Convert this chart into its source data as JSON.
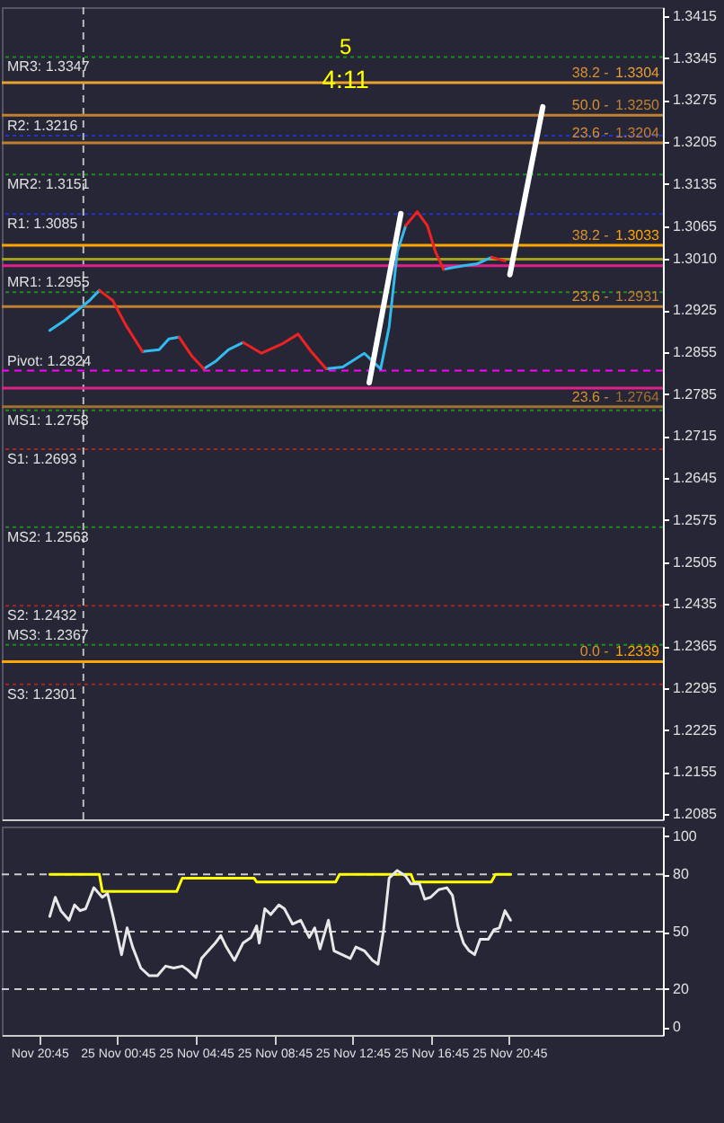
{
  "chart_data": [
    {
      "type": "line",
      "xlim": [
        "--11-24T18:50",
        "--11-26T04:36"
      ],
      "ylim": [
        1.2076,
        1.343
      ],
      "tick_labels": "y",
      "yticks": [
        1.3415,
        1.3345,
        1.3275,
        1.3205,
        1.3135,
        1.3065,
        {
          "value": 1.301,
          "label": "1.3010"
        },
        1.2925,
        1.2855,
        1.2785,
        1.2715,
        1.2645,
        1.2575,
        1.2505,
        1.2435,
        1.2365,
        1.2295,
        1.2225,
        1.2155,
        1.2085
      ],
      "x": [
        "--11-24T21:17",
        "--11-24T21:58",
        "--11-24T22:38",
        "--11-24T23:19",
        "--11-24T23:49",
        "--11-25T00:30",
        "--11-25T01:10",
        "--11-25T02:01",
        "--11-25T02:52",
        "--11-25T03:22",
        "--11-25T03:53",
        "--11-25T04:33",
        "--11-25T05:09",
        "--11-25T05:44",
        "--11-25T06:25",
        "--11-25T07:10",
        "--11-25T08:06",
        "--11-25T09:07",
        "--11-25T09:58",
        "--11-25T10:38",
        "--11-25T11:24",
        "--11-25T12:15",
        "--11-25T13:21",
        "--11-25T14:11",
        "--11-25T14:37",
        "--11-25T15:02",
        "--11-25T15:28",
        "--11-25T16:03",
        "--11-25T16:34",
        "--11-25T16:59",
        "--11-25T17:24",
        "--11-25T18:25",
        "--11-25T19:05",
        "--11-25T19:51",
        "--11-25T20:32"
      ],
      "series": [
        {
          "color": "#33bbee",
          "values": [
            1.2891,
            1.2906,
            1.2923,
            1.2941,
            1.2958,
            null,
            null,
            1.2856,
            1.2859,
            1.2877,
            1.288,
            null,
            1.2827,
            1.2839,
            1.2859,
            1.2871,
            null,
            null,
            null,
            null,
            1.2827,
            1.283,
            1.2853,
            1.2827,
            1.2897,
            1.3022,
            1.3066,
            null,
            null,
            null,
            1.2993,
            1.2999,
            1.3002,
            1.3013,
            null
          ]
        },
        {
          "color": "#ee2222",
          "values": [
            null,
            null,
            null,
            null,
            1.2958,
            1.2941,
            1.29,
            1.2856,
            null,
            null,
            1.288,
            1.2848,
            1.2827,
            null,
            null,
            1.2871,
            1.2853,
            1.2868,
            1.2885,
            1.2856,
            1.2827,
            null,
            null,
            null,
            null,
            null,
            1.3066,
            1.3089,
            1.3066,
            1.3022,
            1.2993,
            null,
            null,
            1.3013,
            1.3007
          ]
        },
        {
          "color": "#ffffff",
          "x": [
            "--11-25T13:36",
            "--11-25T15:13"
          ],
          "values": [
            1.2804,
            1.3086
          ]
        },
        {
          "color": "#ffffff",
          "x": [
            "--11-25T20:47",
            "--11-25T22:28"
          ],
          "values": [
            1.2984,
            1.3264
          ]
        }
      ],
      "ref_lines": [
        {
          "axis": "x",
          "value": "--11-24T23:00",
          "color": "#bbbbbb",
          "line_style": "dashed"
        },
        {
          "axis": "y",
          "value": 1.3347,
          "label": "MR3: 1.3347",
          "color": "#1e8c1e",
          "line_style": "dotted"
        },
        {
          "axis": "y",
          "value": 1.3216,
          "label": "R2: 1.3216",
          "color": "#2233cc",
          "line_style": "dotted"
        },
        {
          "axis": "y",
          "value": 1.3151,
          "label": "MR2: 1.3151",
          "color": "#1e8c1e",
          "line_style": "dotted"
        },
        {
          "axis": "y",
          "value": 1.3085,
          "label": "R1: 1.3085",
          "color": "#2233cc",
          "line_style": "dotted"
        },
        {
          "axis": "y",
          "value": 1.2955,
          "label": "MR1: 1.2955",
          "color": "#1e8c1e",
          "line_style": "dotted"
        },
        {
          "axis": "y",
          "value": 1.2824,
          "label": "Pivot: 1.2824",
          "color": "#ff00ff",
          "line_style": "dashed"
        },
        {
          "axis": "y",
          "value": 1.2758,
          "label": "MS1: 1.2758",
          "color": "#1e8c1e",
          "line_style": "dotted"
        },
        {
          "axis": "y",
          "value": 1.2693,
          "label": "S1: 1.2693",
          "color": "#aa2222",
          "line_style": "dotted"
        },
        {
          "axis": "y",
          "value": 1.2563,
          "label": "MS2: 1.2563",
          "color": "#1e8c1e",
          "line_style": "dotted"
        },
        {
          "axis": "y",
          "value": 1.2432,
          "label": "S2: 1.2432",
          "color": "#aa2222",
          "line_style": "dotted"
        },
        {
          "axis": "y",
          "value": 1.2367,
          "label": "MS3: 1.2367",
          "color": "#1e8c1e",
          "line_style": "dotted"
        },
        {
          "axis": "y",
          "value": 1.2301,
          "label": "S3: 1.2301",
          "color": "#aa2222",
          "line_style": "dotted"
        },
        {
          "axis": "y",
          "value": 1.3304,
          "label": "1.3304",
          "color": "#e8a030",
          "line_style": "solid"
        },
        {
          "axis": "y",
          "value": 1.325,
          "label": "1.3250",
          "color": "#c08030",
          "line_style": "solid"
        },
        {
          "axis": "y",
          "value": 1.3204,
          "label": "1.3204",
          "color": "#c08030",
          "line_style": "solid"
        },
        {
          "axis": "y",
          "value": 1.3033,
          "label": "1.3033",
          "color": "#ffa500",
          "line_style": "solid"
        },
        {
          "axis": "y",
          "value": 1.2931,
          "label": "1.2931",
          "color": "#c08030",
          "line_style": "solid"
        },
        {
          "axis": "y",
          "value": 1.2764,
          "label": "1.2764",
          "color": "#a07030",
          "line_style": "solid"
        },
        {
          "axis": "y",
          "value": 1.2339,
          "label": "1.2339",
          "color": "#ffa500",
          "line_style": "solid"
        },
        {
          "axis": "y",
          "value": 1.301,
          "color": "#a0a020",
          "line_style": "solid"
        },
        {
          "axis": "y",
          "value": 1.2999,
          "color": "#e0208a",
          "line_style": "solid"
        },
        {
          "axis": "y",
          "value": 1.2795,
          "color": "#e0208a",
          "line_style": "solid"
        }
      ],
      "annotations": [
        "5",
        "4:11",
        {
          "text": "38.2 -",
          "x": "--11-26T01:50",
          "y": 1.3304
        },
        {
          "text": "50.0 -",
          "x": "--11-26T01:50",
          "y": 1.325
        },
        {
          "text": "23.6 -",
          "x": "--11-26T01:50",
          "y": 1.3204
        },
        {
          "text": "38.2 -",
          "x": "--11-26T01:50",
          "y": 1.3033
        },
        {
          "text": "23.6 -",
          "x": "--11-26T01:50",
          "y": 1.2931
        },
        {
          "text": "23.6 -",
          "x": "--11-26T01:50",
          "y": 1.2764
        },
        {
          "text": "0.0 -",
          "x": "--11-26T01:50",
          "y": 1.2339
        }
      ]
    },
    {
      "type": "line",
      "xlim": [
        "--11-24T18:50",
        "--11-26T04:36"
      ],
      "ylim": [
        -4,
        105
      ],
      "yticks": [
        0,
        20,
        50,
        80,
        100
      ],
      "xticks": [
        {
          "value": "--11-24T20:45",
          "label": "Nov 20:45"
        },
        {
          "value": "--11-25T00:45",
          "label": "25 Nov 00:45"
        },
        {
          "value": "--11-25T04:45",
          "label": "25 Nov 04:45"
        },
        {
          "value": "--11-25T08:45",
          "label": "25 Nov 08:45"
        },
        {
          "value": "--11-25T12:45",
          "label": "25 Nov 12:45"
        },
        {
          "value": "--11-25T16:45",
          "label": "25 Nov 16:45"
        },
        {
          "value": "--11-25T20:45",
          "label": "25 Nov 20:45"
        }
      ],
      "series": [
        {
          "color": "#ffff00",
          "x": [
            "--11-24T21:17",
            "--11-24T23:49",
            "--11-24T23:58",
            "--11-25T03:46",
            "--11-25T04:03",
            "--11-25T07:43",
            "--11-25T07:51",
            "--11-25T11:53",
            "--11-25T12:05",
            "--11-25T15:44",
            "--11-25T15:53",
            "--11-25T19:50",
            "--11-25T20:03",
            "--11-25T20:49"
          ],
          "values": [
            80,
            80,
            71,
            71,
            78,
            78,
            76,
            76,
            80,
            80,
            76,
            76,
            80,
            80
          ]
        },
        {
          "color": "#e8e8e8",
          "x": [
            "--11-24T21:17",
            "--11-24T21:34",
            "--11-24T21:51",
            "--11-24T22:16",
            "--11-24T22:33",
            "--11-24T22:50",
            "--11-24T23:07",
            "--11-24T23:32",
            "--11-24T23:58",
            "--11-25T00:14",
            "--11-25T00:31",
            "--11-25T00:57",
            "--11-25T01:14",
            "--11-25T01:31",
            "--11-25T01:56",
            "--11-25T02:22",
            "--11-25T02:47",
            "--11-25T03:12",
            "--11-25T03:37",
            "--11-25T04:03",
            "--11-25T04:20",
            "--11-25T04:45",
            "--11-25T05:02",
            "--11-25T05:28",
            "--11-25T05:44",
            "--11-25T06:01",
            "--11-25T06:18",
            "--11-25T06:43",
            "--11-25T07:09",
            "--11-25T07:34",
            "--11-25T07:51",
            "--11-25T07:59",
            "--11-25T08:16",
            "--11-25T08:34",
            "--11-25T08:59",
            "--11-25T09:16",
            "--11-25T09:41",
            "--11-25T10:06",
            "--11-25T10:32",
            "--11-25T10:49",
            "--11-25T11:05",
            "--11-25T11:31",
            "--11-25T11:48",
            "--11-25T12:13",
            "--11-25T12:38",
            "--11-25T12:55",
            "--11-25T13:21",
            "--11-25T13:46",
            "--11-25T14:03",
            "--11-25T14:20",
            "--11-25T14:37",
            "--11-25T15:02",
            "--11-25T15:28",
            "--11-25T15:44",
            "--11-25T16:10",
            "--11-25T16:26",
            "--11-25T16:44",
            "--11-25T17:09",
            "--11-25T17:34",
            "--11-25T17:51",
            "--11-25T18:08",
            "--11-25T18:25",
            "--11-25T18:42",
            "--11-25T18:59",
            "--11-25T19:16",
            "--11-25T19:41",
            "--11-25T19:58",
            "--11-25T20:15",
            "--11-25T20:32",
            "--11-25T20:49"
          ],
          "values": [
            58,
            68,
            61,
            56,
            64,
            61,
            62,
            73,
            68,
            70,
            58,
            38,
            52,
            42,
            31,
            27,
            27,
            32,
            31,
            32,
            30,
            26,
            36,
            41,
            44,
            48,
            42,
            35,
            44,
            47,
            53,
            44,
            62,
            59,
            64,
            62,
            54,
            56,
            47,
            52,
            41,
            56,
            40,
            38,
            36,
            42,
            40,
            35,
            33,
            51,
            78,
            82,
            79,
            75,
            75,
            67,
            68,
            72,
            73,
            69,
            53,
            44,
            40,
            38,
            46,
            46,
            51,
            52,
            61,
            56
          ]
        }
      ],
      "ref_lines": [
        {
          "axis": "y",
          "value": 20,
          "color": "#cccccc",
          "line_style": "dashed"
        },
        {
          "axis": "y",
          "value": 50,
          "color": "#cccccc",
          "line_style": "dashed"
        },
        {
          "axis": "y",
          "value": 80,
          "color": "#cccccc",
          "line_style": "dashed"
        }
      ]
    }
  ]
}
